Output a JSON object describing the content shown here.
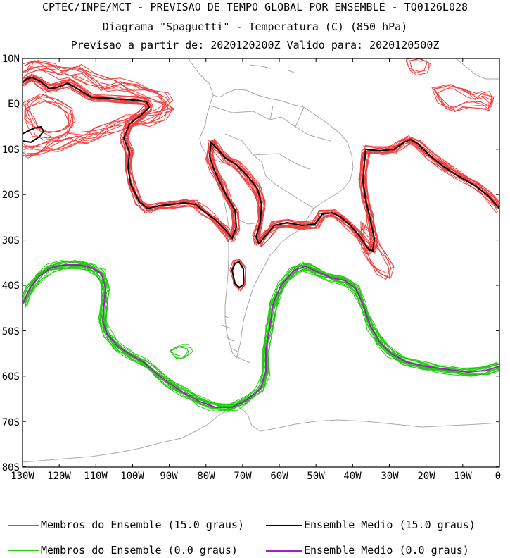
{
  "header": {
    "line1": "CPTEC/INPE/MCT - PREVISAO DE TEMPO GLOBAL POR ENSEMBLE - TQ0126L028",
    "line2": "Diagrama \"Spaguetti\" - Temperatura (C) (850 hPa)",
    "line3": "Previsao a partir de: 2020120200Z  Valido para: 2020120500Z"
  },
  "axes": {
    "lat_labels": [
      "10N",
      "EQ",
      "10S",
      "20S",
      "30S",
      "40S",
      "50S",
      "60S",
      "70S",
      "80S"
    ],
    "lon_labels": [
      "130W",
      "120W",
      "110W",
      "100W",
      "90W",
      "80W",
      "70W",
      "60W",
      "50W",
      "40W",
      "30W",
      "20W",
      "10W",
      "0"
    ]
  },
  "legend": {
    "members_15": "Membros do Ensemble (15.0 graus)",
    "mean_15": "Ensemble Medio (15.0 graus)",
    "members_0": "Membros do Ensemble (0.0 graus)",
    "mean_0": "Ensemble Medio (0.0 graus)"
  },
  "colors": {
    "members_15": "#f04040",
    "mean_15": "#000000",
    "members_0": "#22cc11",
    "mean_0": "#a020c0",
    "coast": "#a8a8a8"
  }
}
